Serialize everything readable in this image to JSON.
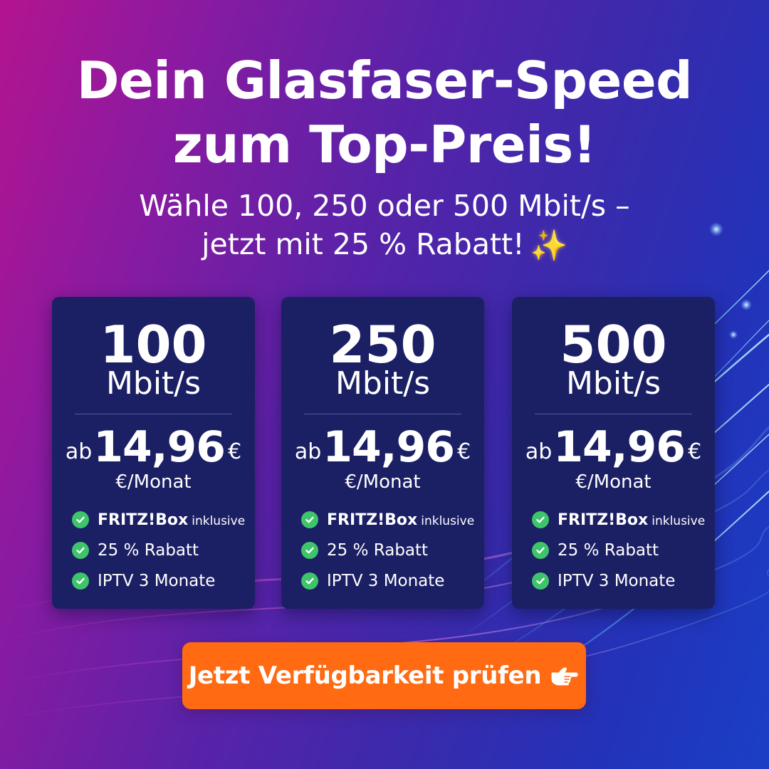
{
  "headline": {
    "line1": "Dein Glasfaser-Speed",
    "line2": "zum Top-Preis!"
  },
  "subline": {
    "line1": "Wähle 100, 250 oder 500 Mbit/s –",
    "line2": "jetzt mit 25 % Rabatt!",
    "emoji": "✨"
  },
  "plans": [
    {
      "speed": "100",
      "unit": "Mbit/s",
      "price_prefix": "ab",
      "price": "14,96",
      "currency": "€",
      "period": "€/Monat",
      "features": [
        {
          "strong": "FRITZ!Box",
          "small": "inklusive"
        },
        {
          "text": "25 % Rabatt"
        },
        {
          "text": "IPTV 3 Monate"
        }
      ]
    },
    {
      "speed": "250",
      "unit": "Mbit/s",
      "price_prefix": "ab",
      "price": "14,96",
      "currency": "€",
      "period": "€/Monat",
      "features": [
        {
          "strong": "FRITZ!Box",
          "small": "inklusive"
        },
        {
          "text": "25 % Rabatt"
        },
        {
          "text": "IPTV 3 Monate"
        }
      ]
    },
    {
      "speed": "500",
      "unit": "Mbit/s",
      "price_prefix": "ab",
      "price": "14,96",
      "currency": "€",
      "period": "€/Monat",
      "features": [
        {
          "strong": "FRITZ!Box",
          "small": "inklusive"
        },
        {
          "text": "25 % Rabatt"
        },
        {
          "text": "IPTV 3 Monate"
        }
      ]
    }
  ],
  "cta": {
    "label": "Jetzt Verfügbarkeit prüfen",
    "icon": "pointing-hand-icon"
  },
  "colors": {
    "card_bg": "#1b1f64",
    "check_green": "#3ec46a",
    "cta_orange": "#ff6a12",
    "background_left": "#b3148f",
    "background_right": "#1a3fc6"
  }
}
